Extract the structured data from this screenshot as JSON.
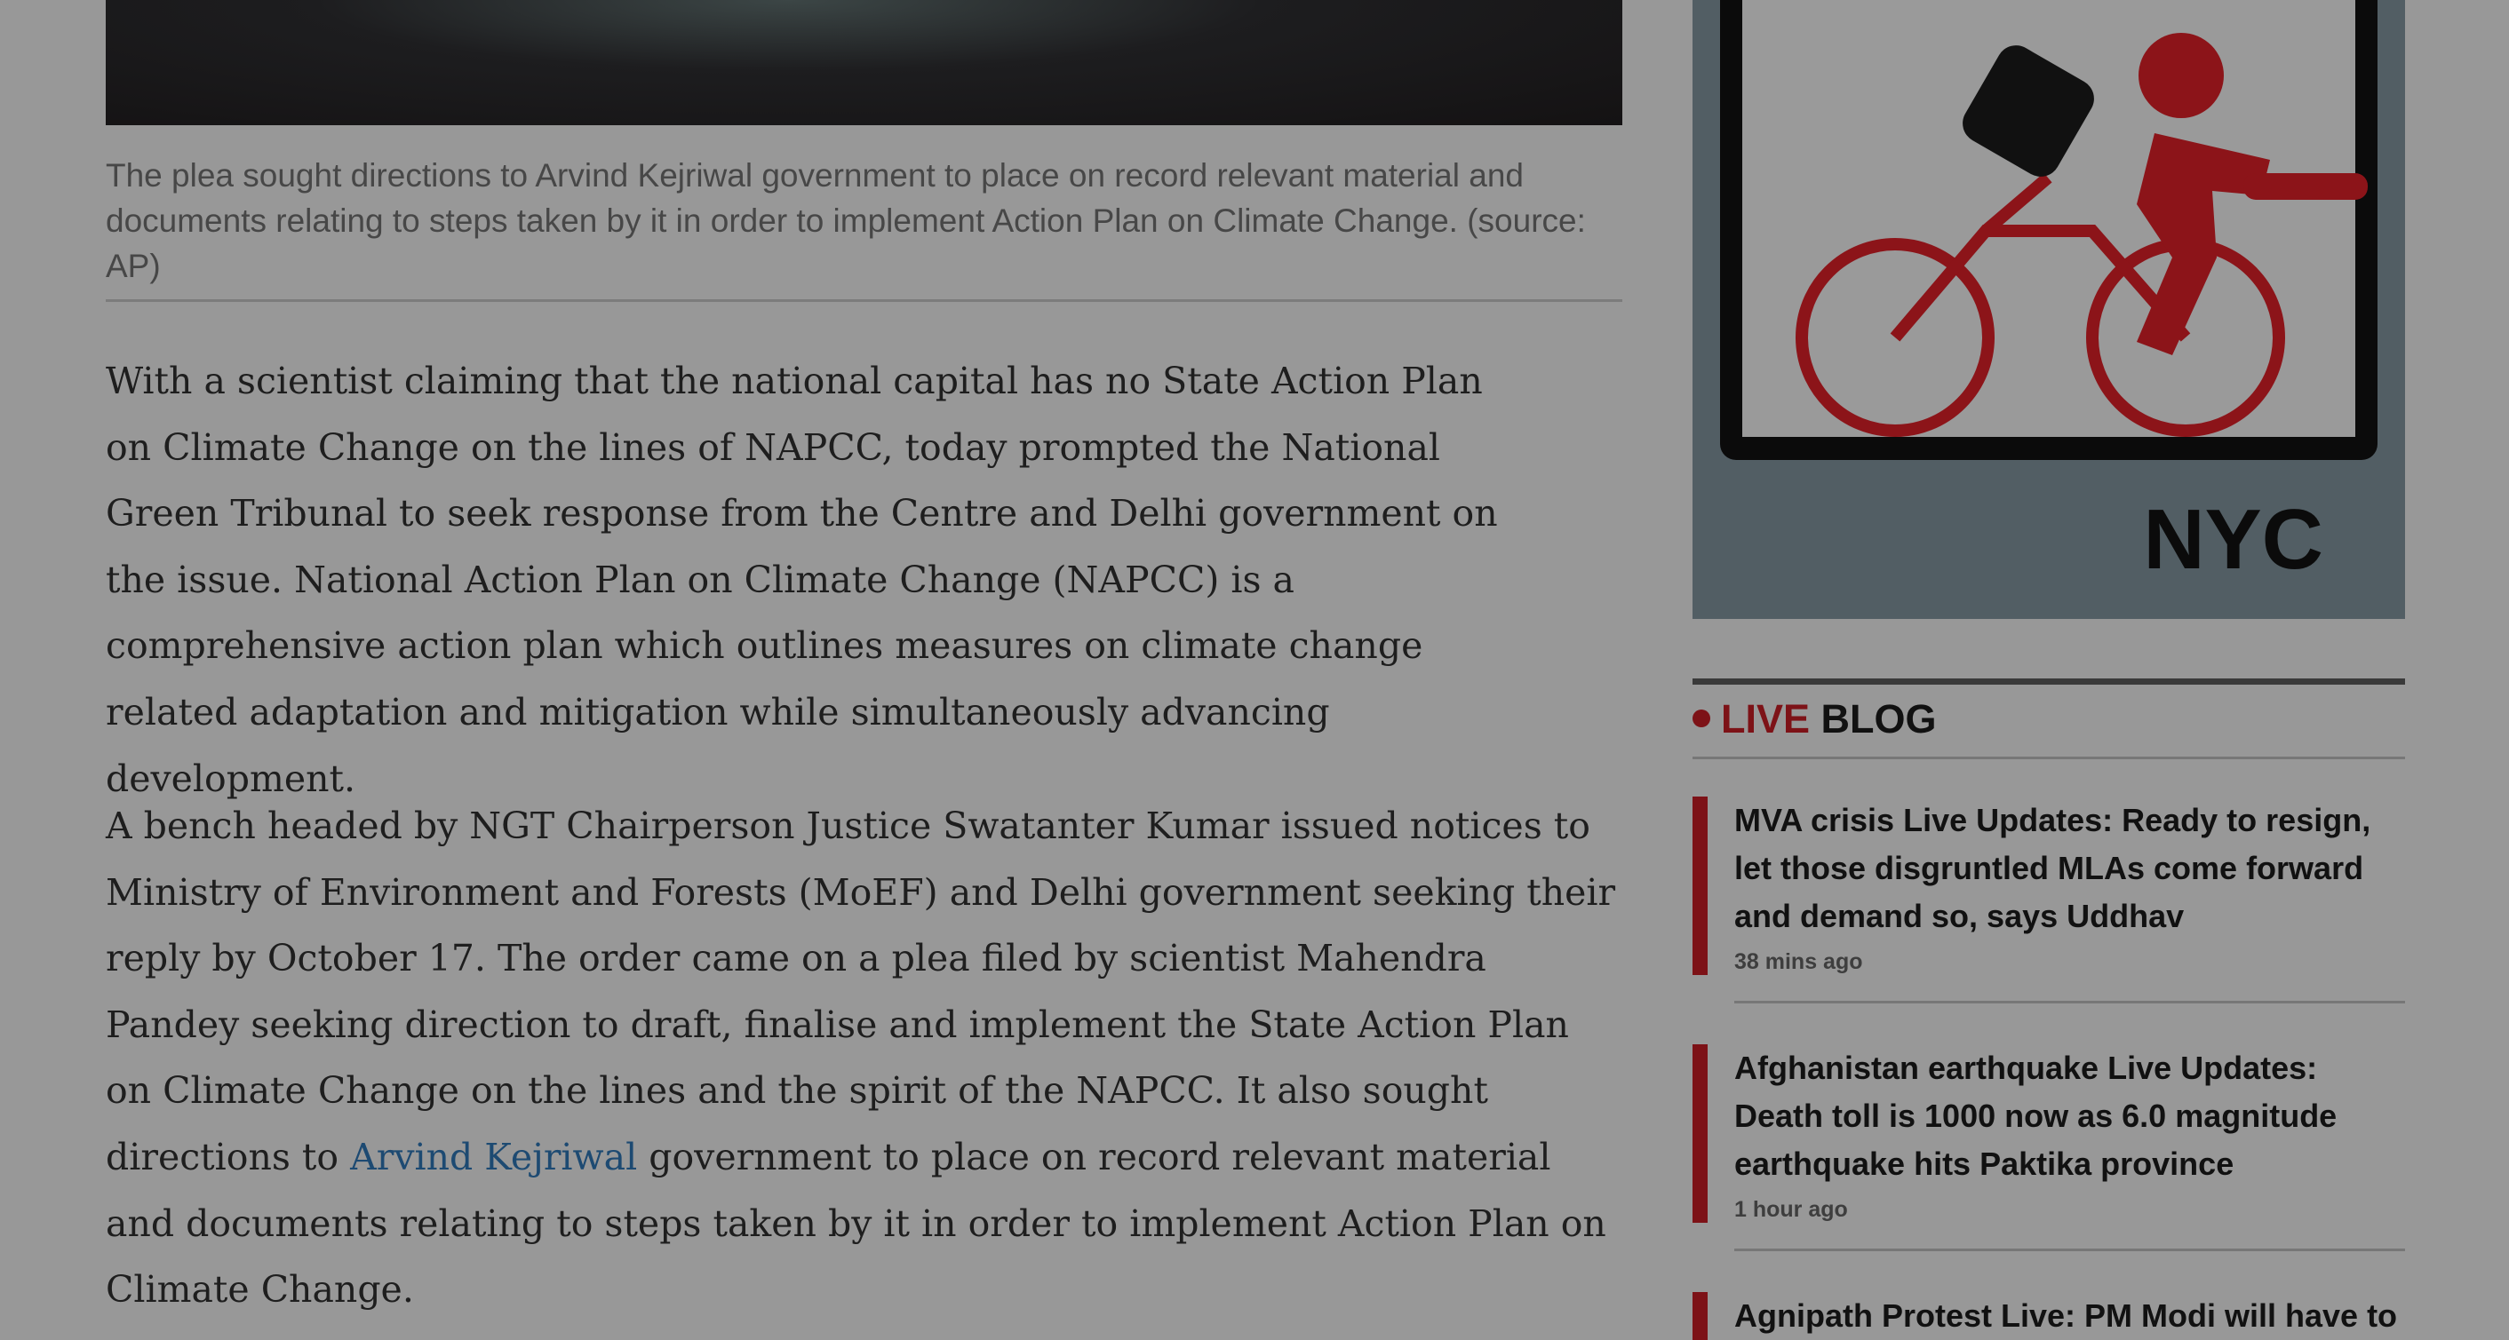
{
  "article": {
    "caption": "The plea sought directions to Arvind Kejriwal government to place on record relevant material and documents relating to steps taken by it in order to implement Action Plan on Climate Change. (source: AP)",
    "paragraphs": [
      {
        "text": "With a scientist claiming that the national capital has no State Action Plan on Climate Change on the lines of NAPCC, today prompted the National Green Tribunal to seek response from the Centre and Delhi government on the issue. National Action Plan on Climate Change (NAPCC) is a comprehensive action plan which outlines measures on climate change related adaptation and mitigation while simultaneously advancing development."
      },
      {
        "before": "A bench headed by NGT Chairperson Justice Swatanter Kumar issued notices to Ministry of Environment and Forests (MoEF) and Delhi government seeking their reply by October 17. The order came on a plea filed by scientist Mahendra Pandey seeking direction to draft, finalise and implement the State Action Plan on Climate Change on the lines and the spirit of the NAPCC. It also sought directions to ",
        "link": "Arvind Kejriwal",
        "after": " government to place on record relevant material and documents relating to steps taken by it in order to implement Action Plan on Climate Change."
      }
    ]
  },
  "ad": {
    "logo": "NYC"
  },
  "live_blog": {
    "label_live": "LIVE",
    "label_blog": "BLOG",
    "items": [
      {
        "title": "MVA crisis Live Updates: Ready to resign, let those disgruntled MLAs come forward and demand so, says Uddhav",
        "time": "38 mins ago"
      },
      {
        "title": "Afghanistan earthquake Live Updates: Death toll is 1000 now as 6.0 magnitude earthquake hits Paktika province",
        "time": "1 hour ago"
      },
      {
        "title": "Agnipath Protest Live: PM Modi will have to",
        "time": ""
      }
    ]
  }
}
